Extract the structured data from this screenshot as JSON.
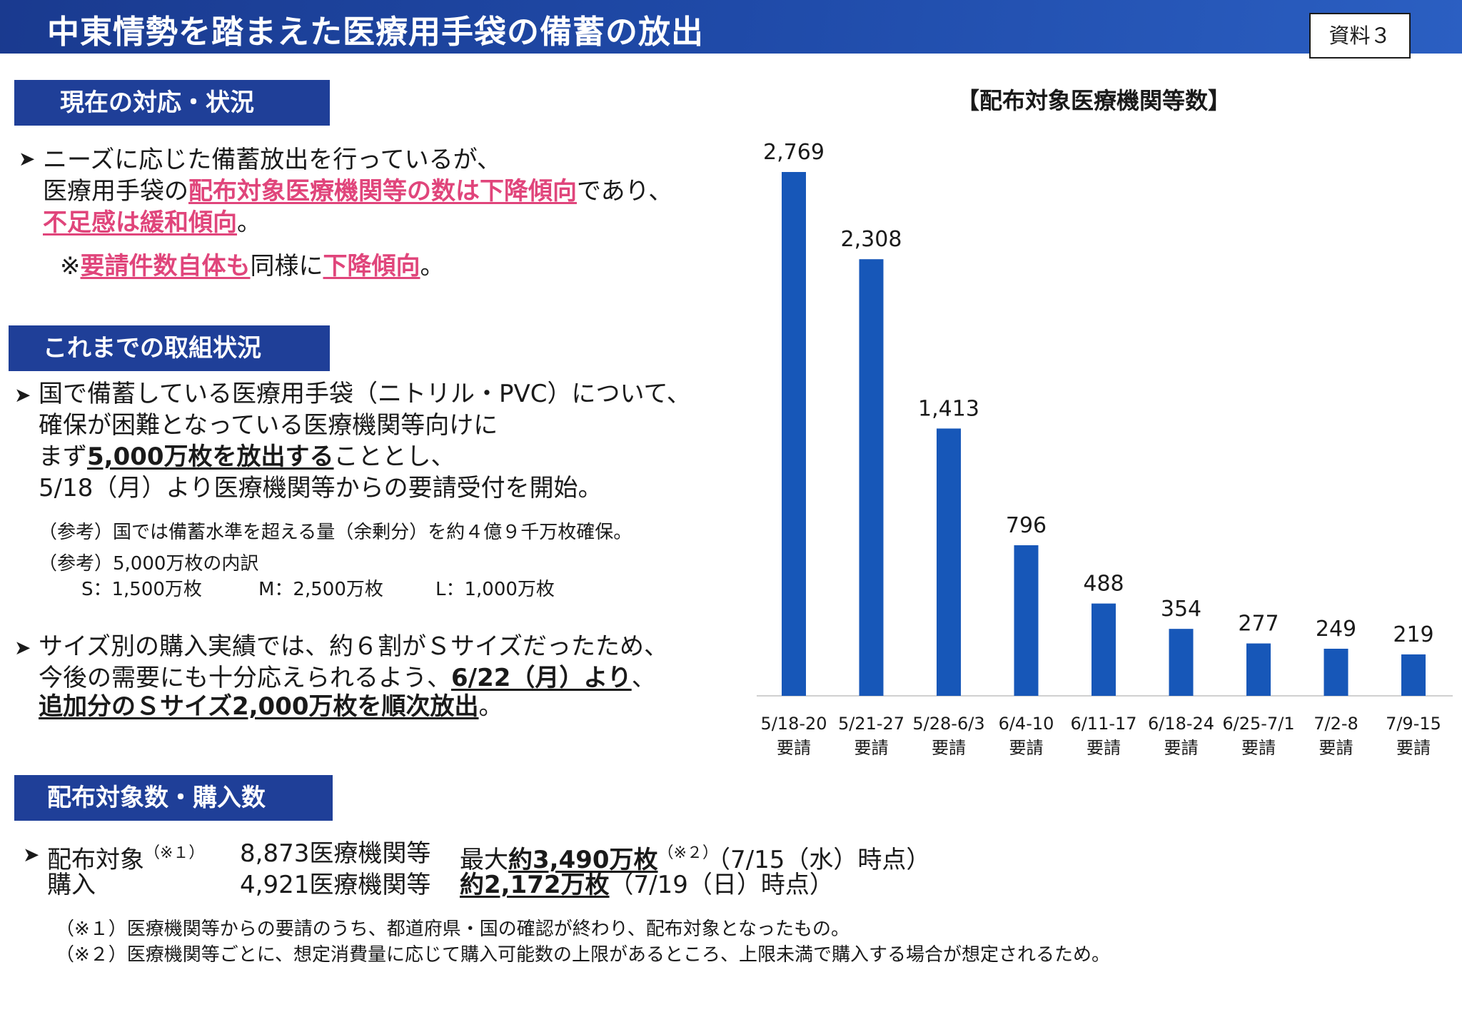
{
  "header": {
    "title": "中東情勢を踏まえた医療用手袋の備蓄の放出",
    "doc_tag": "資料３"
  },
  "section1": {
    "tab": "現在の対応・状況",
    "line1": "ニーズに応じた備蓄放出を行っているが、",
    "line2a": "医療用手袋の",
    "line2b": "配布対象医療機関等の数は下降傾向",
    "line2c": "であり、",
    "line3a": "不足感は緩和傾向",
    "line3b": "。",
    "note_a": "※",
    "note_b": "要請件数自体も",
    "note_c": "同様に",
    "note_d": "下降傾向",
    "note_e": "。"
  },
  "section2": {
    "tab": "これまでの取組状況",
    "b1_line1": "国で備蓄している医療用手袋（ニトリル・PVC）について、",
    "b1_line2": "確保が困難となっている医療機関等向けに",
    "b1_line3a": "まず",
    "b1_line3b": "5,000万枚を放出する",
    "b1_line3c": "こととし、",
    "b1_line4": "5/18（月）より医療機関等からの要請受付を開始。",
    "ref1": "（参考）国では備蓄水準を超える量（余剰分）を約４億９千万枚確保。",
    "ref2": "（参考）5,000万枚の内訳",
    "ref2_s": "S：1,500万枚",
    "ref2_m": "M：2,500万枚",
    "ref2_l": "L：1,000万枚",
    "b2_line1": "サイズ別の購入実績では、約６割がＳサイズだったため、",
    "b2_line2a": "今後の需要にも十分応えられるよう、",
    "b2_line2b": "6/22（月）より",
    "b2_line2c": "、",
    "b2_line3a": "追加分のＳサイズ2,000万枚を順次放出",
    "b2_line3b": "。"
  },
  "section3": {
    "tab": "配布対象数・購入数",
    "row1_label": "配布対象",
    "row1_note": "（※１）",
    "row1_count": "8,873医療機関等",
    "row1_max": "最大",
    "row1_amount": "約3,490万枚",
    "row1_note2": "（※２）",
    "row1_date": "（7/15（水）時点）",
    "row2_label": "購入",
    "row2_count": "4,921医療機関等",
    "row2_amount": "約2,172万枚",
    "row2_date": "（7/19（日）時点）",
    "footnote1": "（※１）医療機関等からの要請のうち、都道府県・国の確認が終わり、配布対象となったもの。",
    "footnote2": "（※２）医療機関等ごとに、想定消費量に応じて購入可能数の上限があるところ、上限未満で購入する場合が想定されるため。"
  },
  "icons": {
    "bullet": "arrowhead-bullet-icon"
  },
  "colors": {
    "header": "#1f4aa8",
    "tab": "#1f3f98",
    "bar": "#1757b8",
    "highlight": "#e0457b"
  },
  "chart_data": {
    "type": "bar",
    "title": "【配布対象医療機関等数】",
    "categories": [
      "5/18-20",
      "5/21-27",
      "5/28-6/3",
      "6/4-10",
      "6/11-17",
      "6/18-24",
      "6/25-7/1",
      "7/2-8",
      "7/9-15"
    ],
    "category_sublabel": "要請",
    "values": [
      2769,
      2308,
      1413,
      796,
      488,
      354,
      277,
      249,
      219
    ],
    "value_labels": [
      "2,769",
      "2,308",
      "1,413",
      "796",
      "488",
      "354",
      "277",
      "249",
      "219"
    ],
    "ylim": [
      0,
      2769
    ],
    "grid": false,
    "legend": "none"
  }
}
